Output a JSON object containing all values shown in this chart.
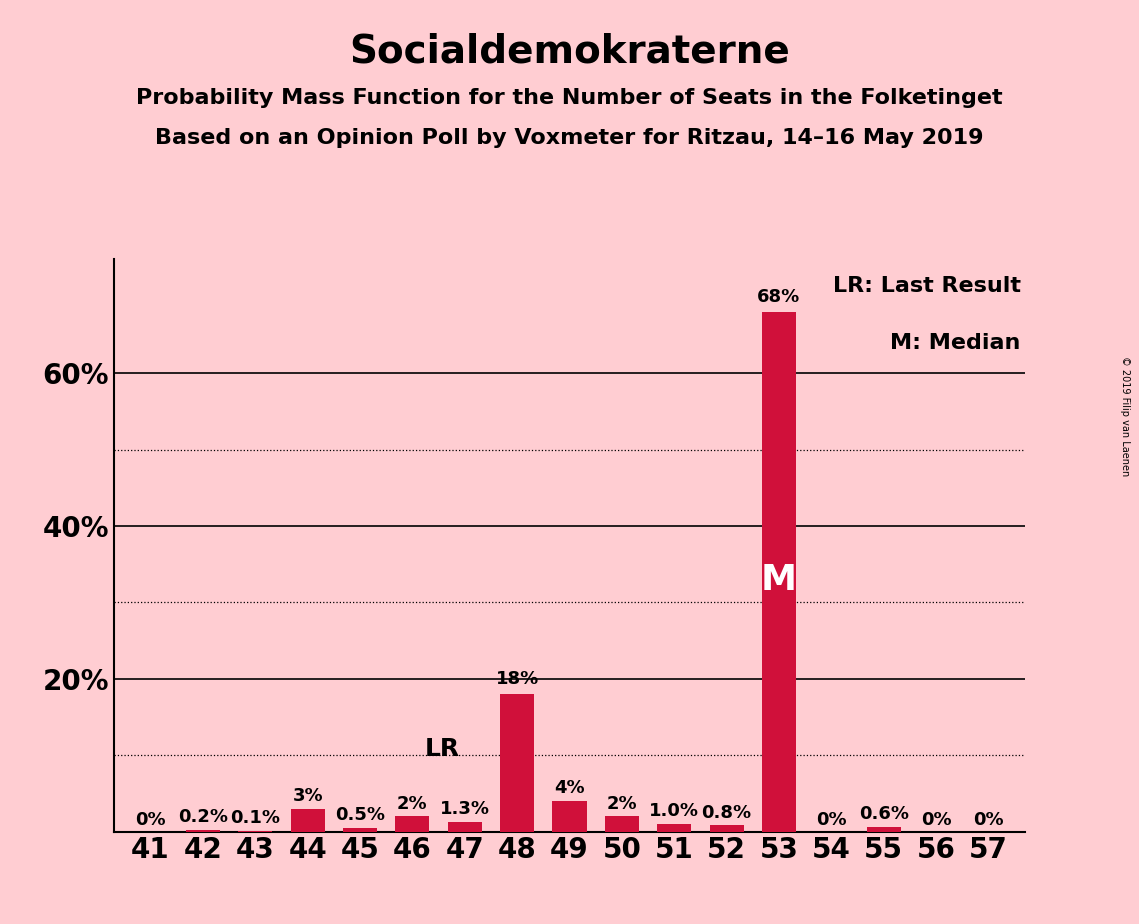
{
  "title": "Socialdemokraterne",
  "subtitle1": "Probability Mass Function for the Number of Seats in the Folketinget",
  "subtitle2": "Based on an Opinion Poll by Voxmeter for Ritzau, 14–16 May 2019",
  "copyright": "© 2019 Filip van Laenen",
  "seats": [
    41,
    42,
    43,
    44,
    45,
    46,
    47,
    48,
    49,
    50,
    51,
    52,
    53,
    54,
    55,
    56,
    57
  ],
  "probabilities": [
    0.0,
    0.2,
    0.1,
    3.0,
    0.5,
    2.0,
    1.3,
    18.0,
    4.0,
    2.0,
    1.0,
    0.8,
    68.0,
    0.0,
    0.6,
    0.0,
    0.0
  ],
  "labels": [
    "0%",
    "0.2%",
    "0.1%",
    "3%",
    "0.5%",
    "2%",
    "1.3%",
    "18%",
    "4%",
    "2%",
    "1.0%",
    "0.8%",
    "68%",
    "0%",
    "0.6%",
    "0%",
    "0%"
  ],
  "bar_color": "#D0103A",
  "background_color": "#FFCDD2",
  "last_result_seat": 47,
  "median_seat": 53,
  "ylim_max": 75,
  "solid_gridlines": [
    20,
    40,
    60
  ],
  "dotted_gridlines": [
    10,
    30,
    50
  ],
  "ytick_positions": [
    20,
    40,
    60
  ],
  "ytick_labels": [
    "20%",
    "40%",
    "60%"
  ],
  "legend_lr": "LR: Last Result",
  "legend_m": "M: Median",
  "title_fontsize": 28,
  "subtitle_fontsize": 16,
  "axis_fontsize": 20,
  "label_fontsize": 13,
  "lr_fontsize": 18,
  "m_fontsize": 26,
  "legend_fontsize": 16
}
